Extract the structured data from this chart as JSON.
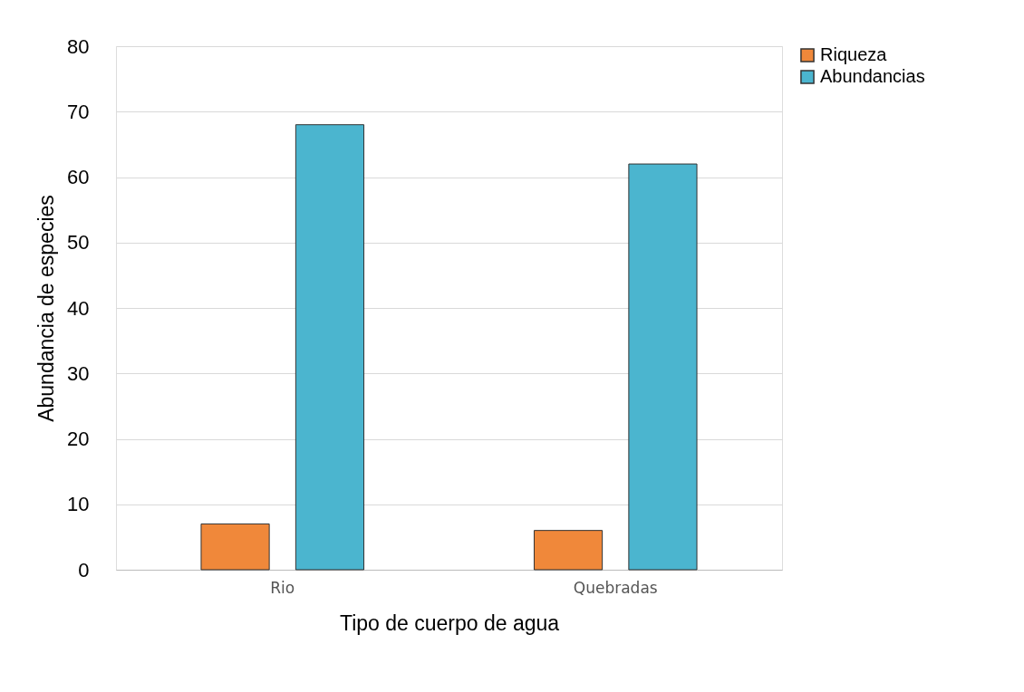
{
  "chart_data": {
    "type": "bar",
    "xlabel": "Tipo de cuerpo de agua",
    "ylabel": "Abundancia de especies",
    "categories": [
      "Rio",
      "Quebradas"
    ],
    "series": [
      {
        "name": "Riqueza",
        "color": "#f0883a",
        "values": [
          7,
          6
        ]
      },
      {
        "name": "Abundancias",
        "color": "#4bb5cf",
        "values": [
          68,
          62
        ]
      }
    ],
    "ylim": [
      0,
      80
    ],
    "yticks": [
      0,
      10,
      20,
      30,
      40,
      50,
      60,
      70,
      80
    ],
    "grid": "y",
    "legend": "right"
  }
}
